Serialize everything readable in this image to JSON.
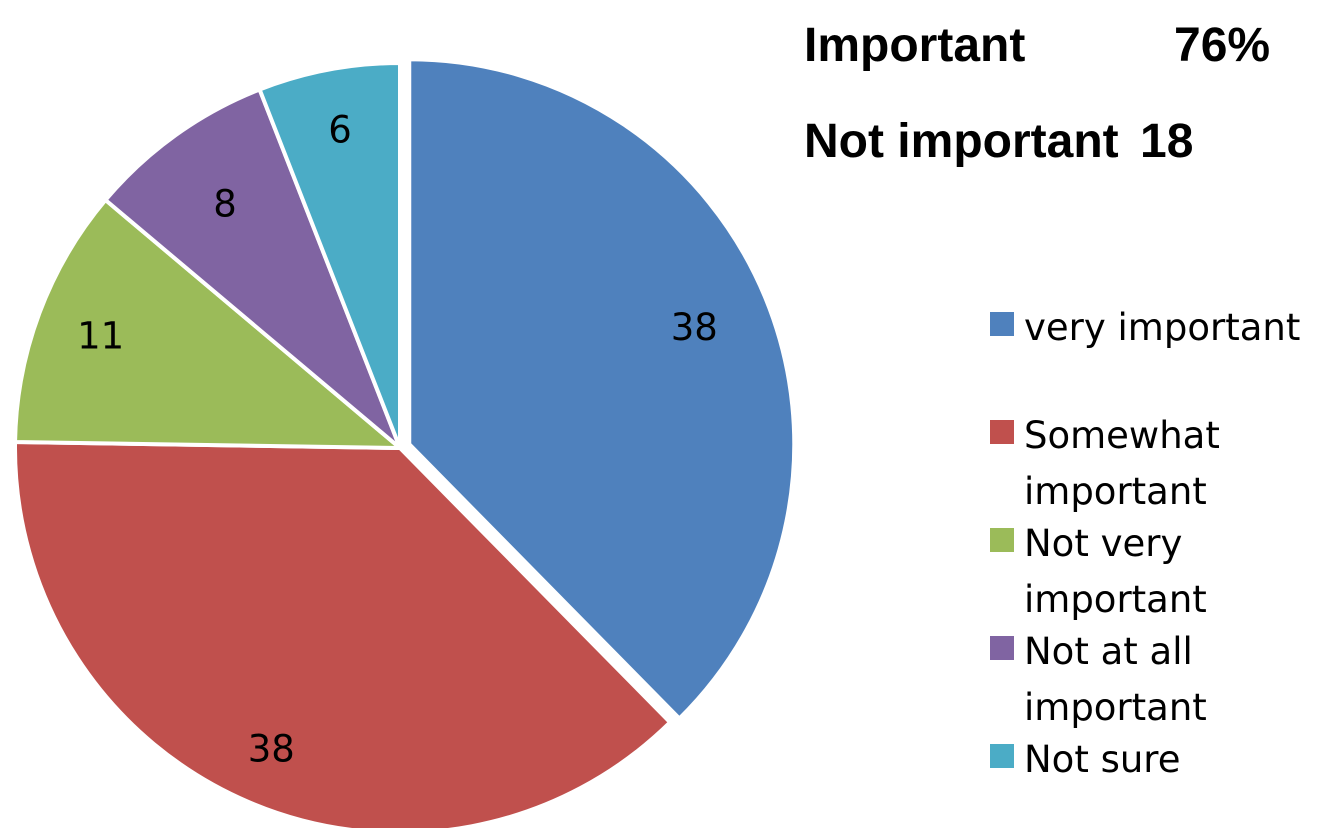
{
  "chart_data": {
    "type": "pie",
    "slices": [
      {
        "label": "very important",
        "value": 38,
        "data_label": "38",
        "color": "#4F81BD"
      },
      {
        "label": "Somewhat important",
        "value": 38,
        "data_label": "38",
        "color": "#C0504D"
      },
      {
        "label": "Not very important",
        "value": 11,
        "data_label": "11",
        "color": "#9BBB59"
      },
      {
        "label": "Not at all important",
        "value": 8,
        "data_label": "8",
        "color": "#8064A2"
      },
      {
        "label": "Not sure",
        "value": 6,
        "data_label": "6",
        "color": "#4BACC6"
      }
    ],
    "legend_position": "right",
    "exploded_slice": "very important"
  },
  "summary": {
    "important_label": "Important",
    "important_value": "76%",
    "not_important_label": "Not important",
    "not_important_value": "18"
  },
  "legend": {
    "items": [
      {
        "line1": "very important",
        "line2": ""
      },
      {
        "line1": "Somewhat",
        "line2": "important"
      },
      {
        "line1": "Not very",
        "line2": "important"
      },
      {
        "line1": "Not at all",
        "line2": "important"
      },
      {
        "line1": "Not sure",
        "line2": ""
      }
    ]
  }
}
